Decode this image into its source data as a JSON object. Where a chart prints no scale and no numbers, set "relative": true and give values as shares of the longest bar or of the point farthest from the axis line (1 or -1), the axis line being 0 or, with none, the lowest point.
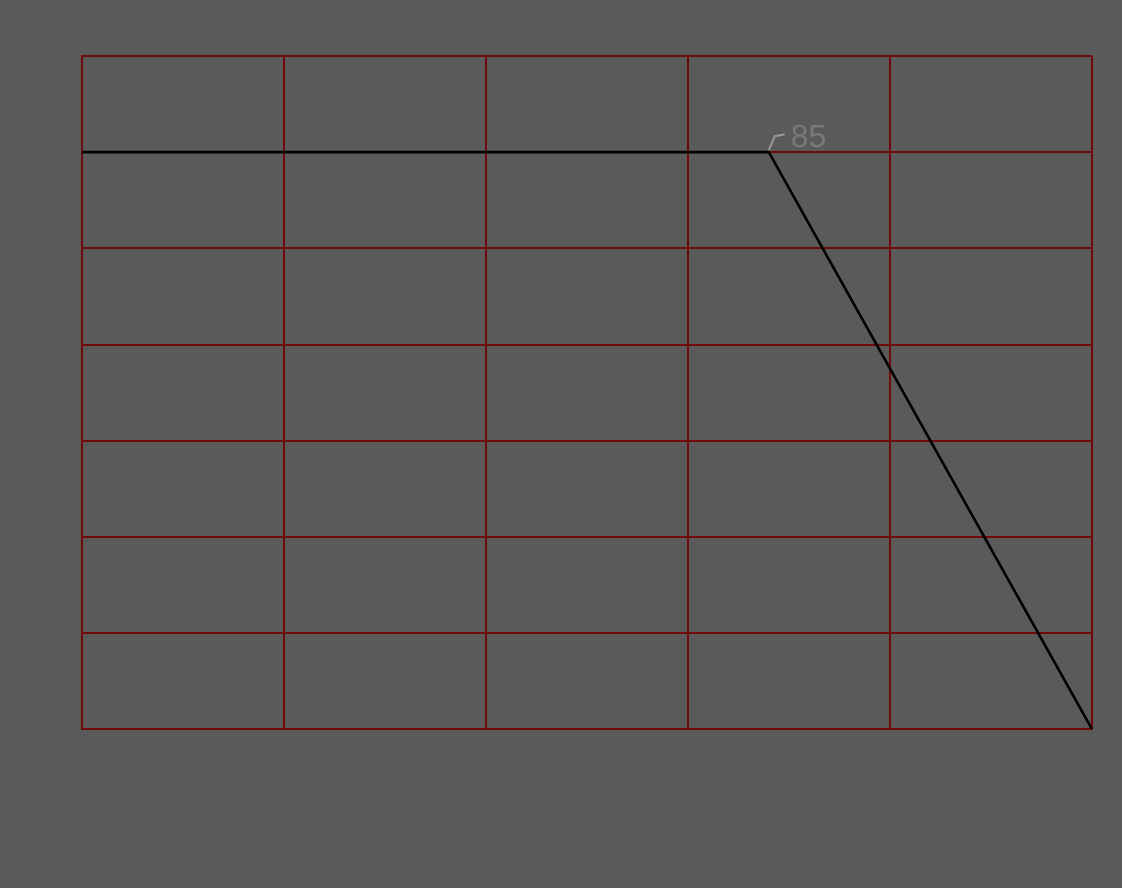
{
  "chart_data": {
    "type": "line",
    "relative": true,
    "categories": [
      null,
      null,
      null,
      null,
      null,
      null,
      null,
      null,
      null,
      null,
      null,
      null,
      null,
      null,
      null,
      null,
      null,
      null,
      null,
      null,
      null,
      null,
      null,
      null,
      null,
      null
    ],
    "series": [
      {
        "color": "#000000",
        "values": [
          1,
          null,
          null,
          null,
          null,
          null,
          null,
          null,
          null,
          null,
          null,
          null,
          null,
          null,
          null,
          null,
          null,
          1,
          null,
          null,
          null,
          null,
          null,
          null,
          null,
          0
        ]
      }
    ],
    "annotations": [
      "85"
    ],
    "grid": true,
    "legend": false,
    "marker": "none",
    "line_style": "solid"
  }
}
